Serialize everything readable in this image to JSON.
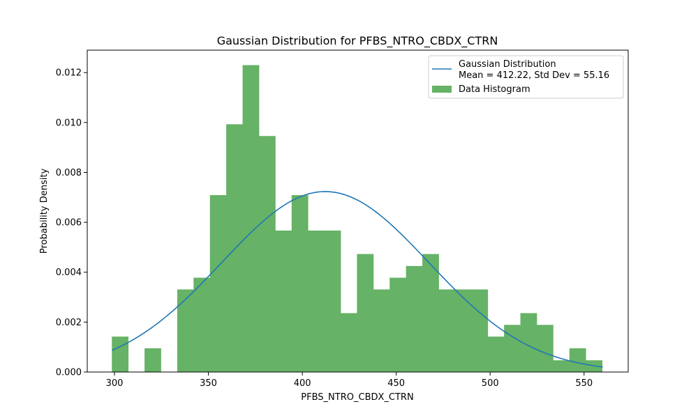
{
  "chart_data": {
    "type": "bar",
    "title": "Gaussian Distribution for PFBS_NTRO_CBDX_CTRN",
    "xlabel": "PFBS_NTRO_CBDX_CTRN",
    "ylabel": "Probability Density",
    "xlim": [
      285.5,
      573.5
    ],
    "ylim": [
      0,
      0.0129
    ],
    "xticks": [
      300,
      350,
      400,
      450,
      500,
      550
    ],
    "yticks": [
      0.0,
      0.002,
      0.004,
      0.006,
      0.008,
      0.01,
      0.012
    ],
    "ytick_labels": [
      "0.000",
      "0.002",
      "0.004",
      "0.006",
      "0.008",
      "0.010",
      "0.012"
    ],
    "grid": false,
    "legend_position": "top-right",
    "histogram": {
      "name": "Data Histogram",
      "color": "#66b266",
      "bin_start": 298.6,
      "bin_width": 8.7,
      "densities": [
        0.00142,
        0,
        0.00095,
        0,
        0.00331,
        0.00378,
        0.00709,
        0.00993,
        0.0123,
        0.00946,
        0.00567,
        0.00709,
        0.00567,
        0.00567,
        0.00236,
        0.00473,
        0.00331,
        0.00378,
        0.00425,
        0.00473,
        0.00331,
        0.00331,
        0.00331,
        0.00142,
        0.00189,
        0.00236,
        0.00189,
        0.00047,
        0.00095,
        0.00047
      ]
    },
    "gaussian": {
      "name_line1": "Gaussian Distribution",
      "name_line2": "Mean = 412.22, Std Dev = 55.16",
      "mean": 412.22,
      "std": 55.16,
      "x_range": [
        298.6,
        560.0
      ],
      "color": "#1f77b4"
    }
  }
}
